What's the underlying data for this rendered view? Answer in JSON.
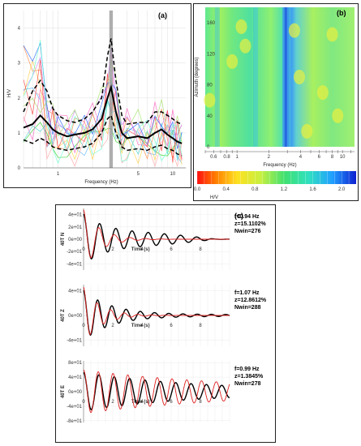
{
  "colors": {
    "mean": "#000000",
    "std": "#000000",
    "band": "#9a9a9a",
    "windows": [
      "#20d020",
      "#50b0ff",
      "#ff8040",
      "#ff60c0",
      "#c080ff",
      "#ffd040",
      "#40d0d0",
      "#ff4040",
      "#2060ff",
      "#a0e060",
      "#ffa0a0",
      "#60ffd0"
    ],
    "synthetic": "#e02020",
    "observed": "#000000"
  },
  "chart_data": [
    {
      "type": "line",
      "panel_label": "(a)",
      "xlabel": "Frequency (Hz)",
      "ylabel": "H/V",
      "xscale": "log",
      "xlim": [
        0.5,
        13
      ],
      "ylim": [
        0,
        4.5
      ],
      "xticks": [
        "1",
        "5",
        "10"
      ],
      "yticks": [
        "0",
        "1",
        "2",
        "3",
        "4"
      ],
      "peak_band_hz": [
        2.8,
        3.0
      ],
      "x": [
        0.5,
        0.6,
        0.7,
        0.8,
        0.9,
        1.0,
        1.2,
        1.4,
        1.7,
        2.0,
        2.4,
        2.7,
        2.9,
        3.2,
        3.6,
        4.0,
        5.0,
        6.0,
        7.0,
        8.0,
        9.0,
        10.0,
        11.0,
        12.0
      ],
      "series": [
        {
          "role": "mean",
          "values": [
            1.15,
            1.25,
            1.5,
            1.3,
            1.1,
            1.0,
            0.9,
            0.95,
            1.0,
            1.1,
            1.4,
            2.0,
            2.3,
            1.6,
            1.0,
            0.85,
            0.9,
            0.85,
            1.0,
            1.1,
            0.95,
            0.85,
            0.75,
            0.7
          ]
        },
        {
          "role": "plus-std",
          "values": [
            1.6,
            2.2,
            2.5,
            2.2,
            1.7,
            1.5,
            1.35,
            1.3,
            1.4,
            1.6,
            2.0,
            3.2,
            3.7,
            2.5,
            1.5,
            1.25,
            1.3,
            1.3,
            1.6,
            1.6,
            1.5,
            1.4,
            1.3,
            1.25
          ]
        },
        {
          "role": "minus-std",
          "values": [
            0.8,
            0.7,
            0.85,
            0.75,
            0.6,
            0.55,
            0.5,
            0.55,
            0.6,
            0.7,
            1.0,
            1.4,
            1.5,
            1.0,
            0.6,
            0.5,
            0.55,
            0.5,
            0.6,
            0.65,
            0.55,
            0.5,
            0.4,
            0.35
          ]
        }
      ]
    },
    {
      "type": "heatmap",
      "panel_label": "(b)",
      "xlabel": "Frequency (Hz)",
      "ylabel": "Azimuth (degrees)",
      "xscale": "log",
      "xlim": [
        0.5,
        13
      ],
      "ylim": [
        0,
        180
      ],
      "xticks": [
        "0.6",
        "0.8",
        "1",
        "2",
        "4",
        "6",
        "8",
        "10"
      ],
      "yticks": [
        "0",
        "40",
        "80",
        "120",
        "160"
      ],
      "colorbar_label": "H/V",
      "colorbar_ticks": [
        "0.0",
        "0.4",
        "0.8",
        "1.2",
        "1.6",
        "2.0"
      ],
      "colorbar_range": [
        0,
        2.2
      ]
    },
    {
      "type": "line",
      "panel_label": "(c)",
      "xlabel": "Time (s)",
      "xlim": [
        0,
        10
      ],
      "xticks": [
        "0",
        "2",
        "4",
        "6",
        "8"
      ],
      "subplots": [
        {
          "ylabel": "40T N",
          "yticks": [
            "4e+01",
            "2e+01",
            "0e+00",
            "-2e+01",
            "-4e+01"
          ],
          "ylim": [
            -50,
            50
          ],
          "f_label": "f=0.94 Hz",
          "z_label": "z=15.1102%",
          "n_label": "Nwin=276",
          "freq_hz": 0.94,
          "damping": 0.151,
          "amplitude": 48
        },
        {
          "ylabel": "40T Z",
          "yticks": [
            "4e+01",
            "0e+00",
            "-4e+01"
          ],
          "ylim": [
            -50,
            50
          ],
          "f_label": "f=1.07 Hz",
          "z_label": "z=12.8612%",
          "n_label": "Nwin=288",
          "freq_hz": 1.07,
          "damping": 0.1286,
          "amplitude": 46
        },
        {
          "ylabel": "40T E",
          "yticks": [
            "8e+01",
            "4e+01",
            "0e+00",
            "-4e+01",
            "-8e+01"
          ],
          "ylim": [
            -85,
            85
          ],
          "f_label": "f=0.99 Hz",
          "z_label": "z=1.3845%",
          "n_label": "Nwin=278",
          "freq_hz": 0.99,
          "damping": 0.01385,
          "amplitude": 60
        }
      ]
    }
  ]
}
